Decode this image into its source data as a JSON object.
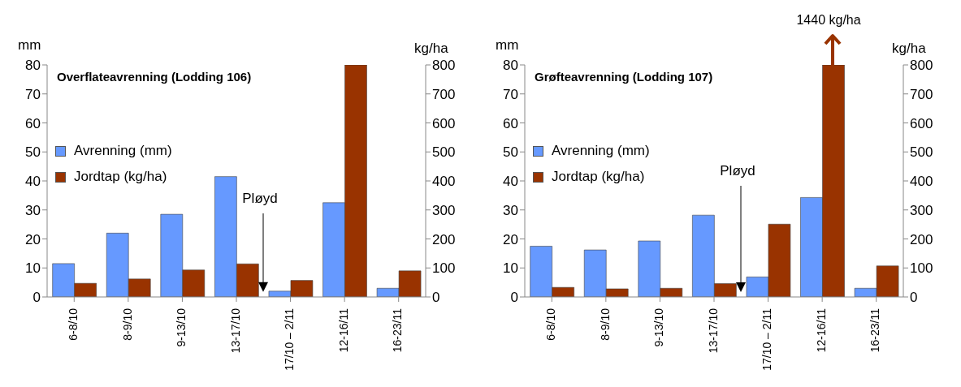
{
  "chart_data": [
    {
      "type": "bar",
      "title": "Overflateavrenning (Lodding 106)",
      "ylabel": "mm",
      "y2label": "kg/ha",
      "categories": [
        "6-8/10",
        "8-9/10",
        "9-13/10",
        "13-17/10",
        "17/10 – 2/11",
        "12-16/11",
        "16-23/11"
      ],
      "series": [
        {
          "name": "Avrenning (mm)",
          "color": "#6699ff",
          "values": [
            11.5,
            22,
            28.5,
            41.5,
            2,
            32.5,
            3
          ]
        },
        {
          "name": "Jordtap (kg/ha)",
          "color": "#993300",
          "axis": "y2",
          "values": [
            47,
            62,
            93,
            114,
            57,
            800,
            90
          ]
        }
      ],
      "ylim": [
        0,
        80
      ],
      "yticks": [
        0,
        10,
        20,
        30,
        40,
        50,
        60,
        70,
        80
      ],
      "y2lim": [
        0,
        800
      ],
      "y2ticks": [
        0,
        100,
        200,
        300,
        400,
        500,
        600,
        700,
        800
      ],
      "legend": "top left",
      "annotations": [
        "Pløyd"
      ]
    },
    {
      "type": "bar",
      "title": "Grøfteavrenning (Lodding 107)",
      "ylabel": "mm",
      "y2label": "kg/ha",
      "categories": [
        "6-8/10",
        "8-9/10",
        "9-13/10",
        "13-17/10",
        "17/10 – 2/11",
        "12-16/11",
        "16-23/11"
      ],
      "series": [
        {
          "name": "Avrenning (mm)",
          "color": "#6699ff",
          "values": [
            17.5,
            16.2,
            19.3,
            28.2,
            6.9,
            34.3,
            3
          ]
        },
        {
          "name": "Jordtap (kg/ha)",
          "color": "#993300",
          "axis": "y2",
          "values": [
            33,
            28,
            30,
            46,
            251,
            800,
            107
          ]
        }
      ],
      "ylim": [
        0,
        80
      ],
      "yticks": [
        0,
        10,
        20,
        30,
        40,
        50,
        60,
        70,
        80
      ],
      "y2lim": [
        0,
        800
      ],
      "y2ticks": [
        0,
        100,
        200,
        300,
        400,
        500,
        600,
        700,
        800
      ],
      "legend": "top left",
      "annotations": [
        "Pløyd",
        "1440 kg/ha"
      ]
    }
  ]
}
